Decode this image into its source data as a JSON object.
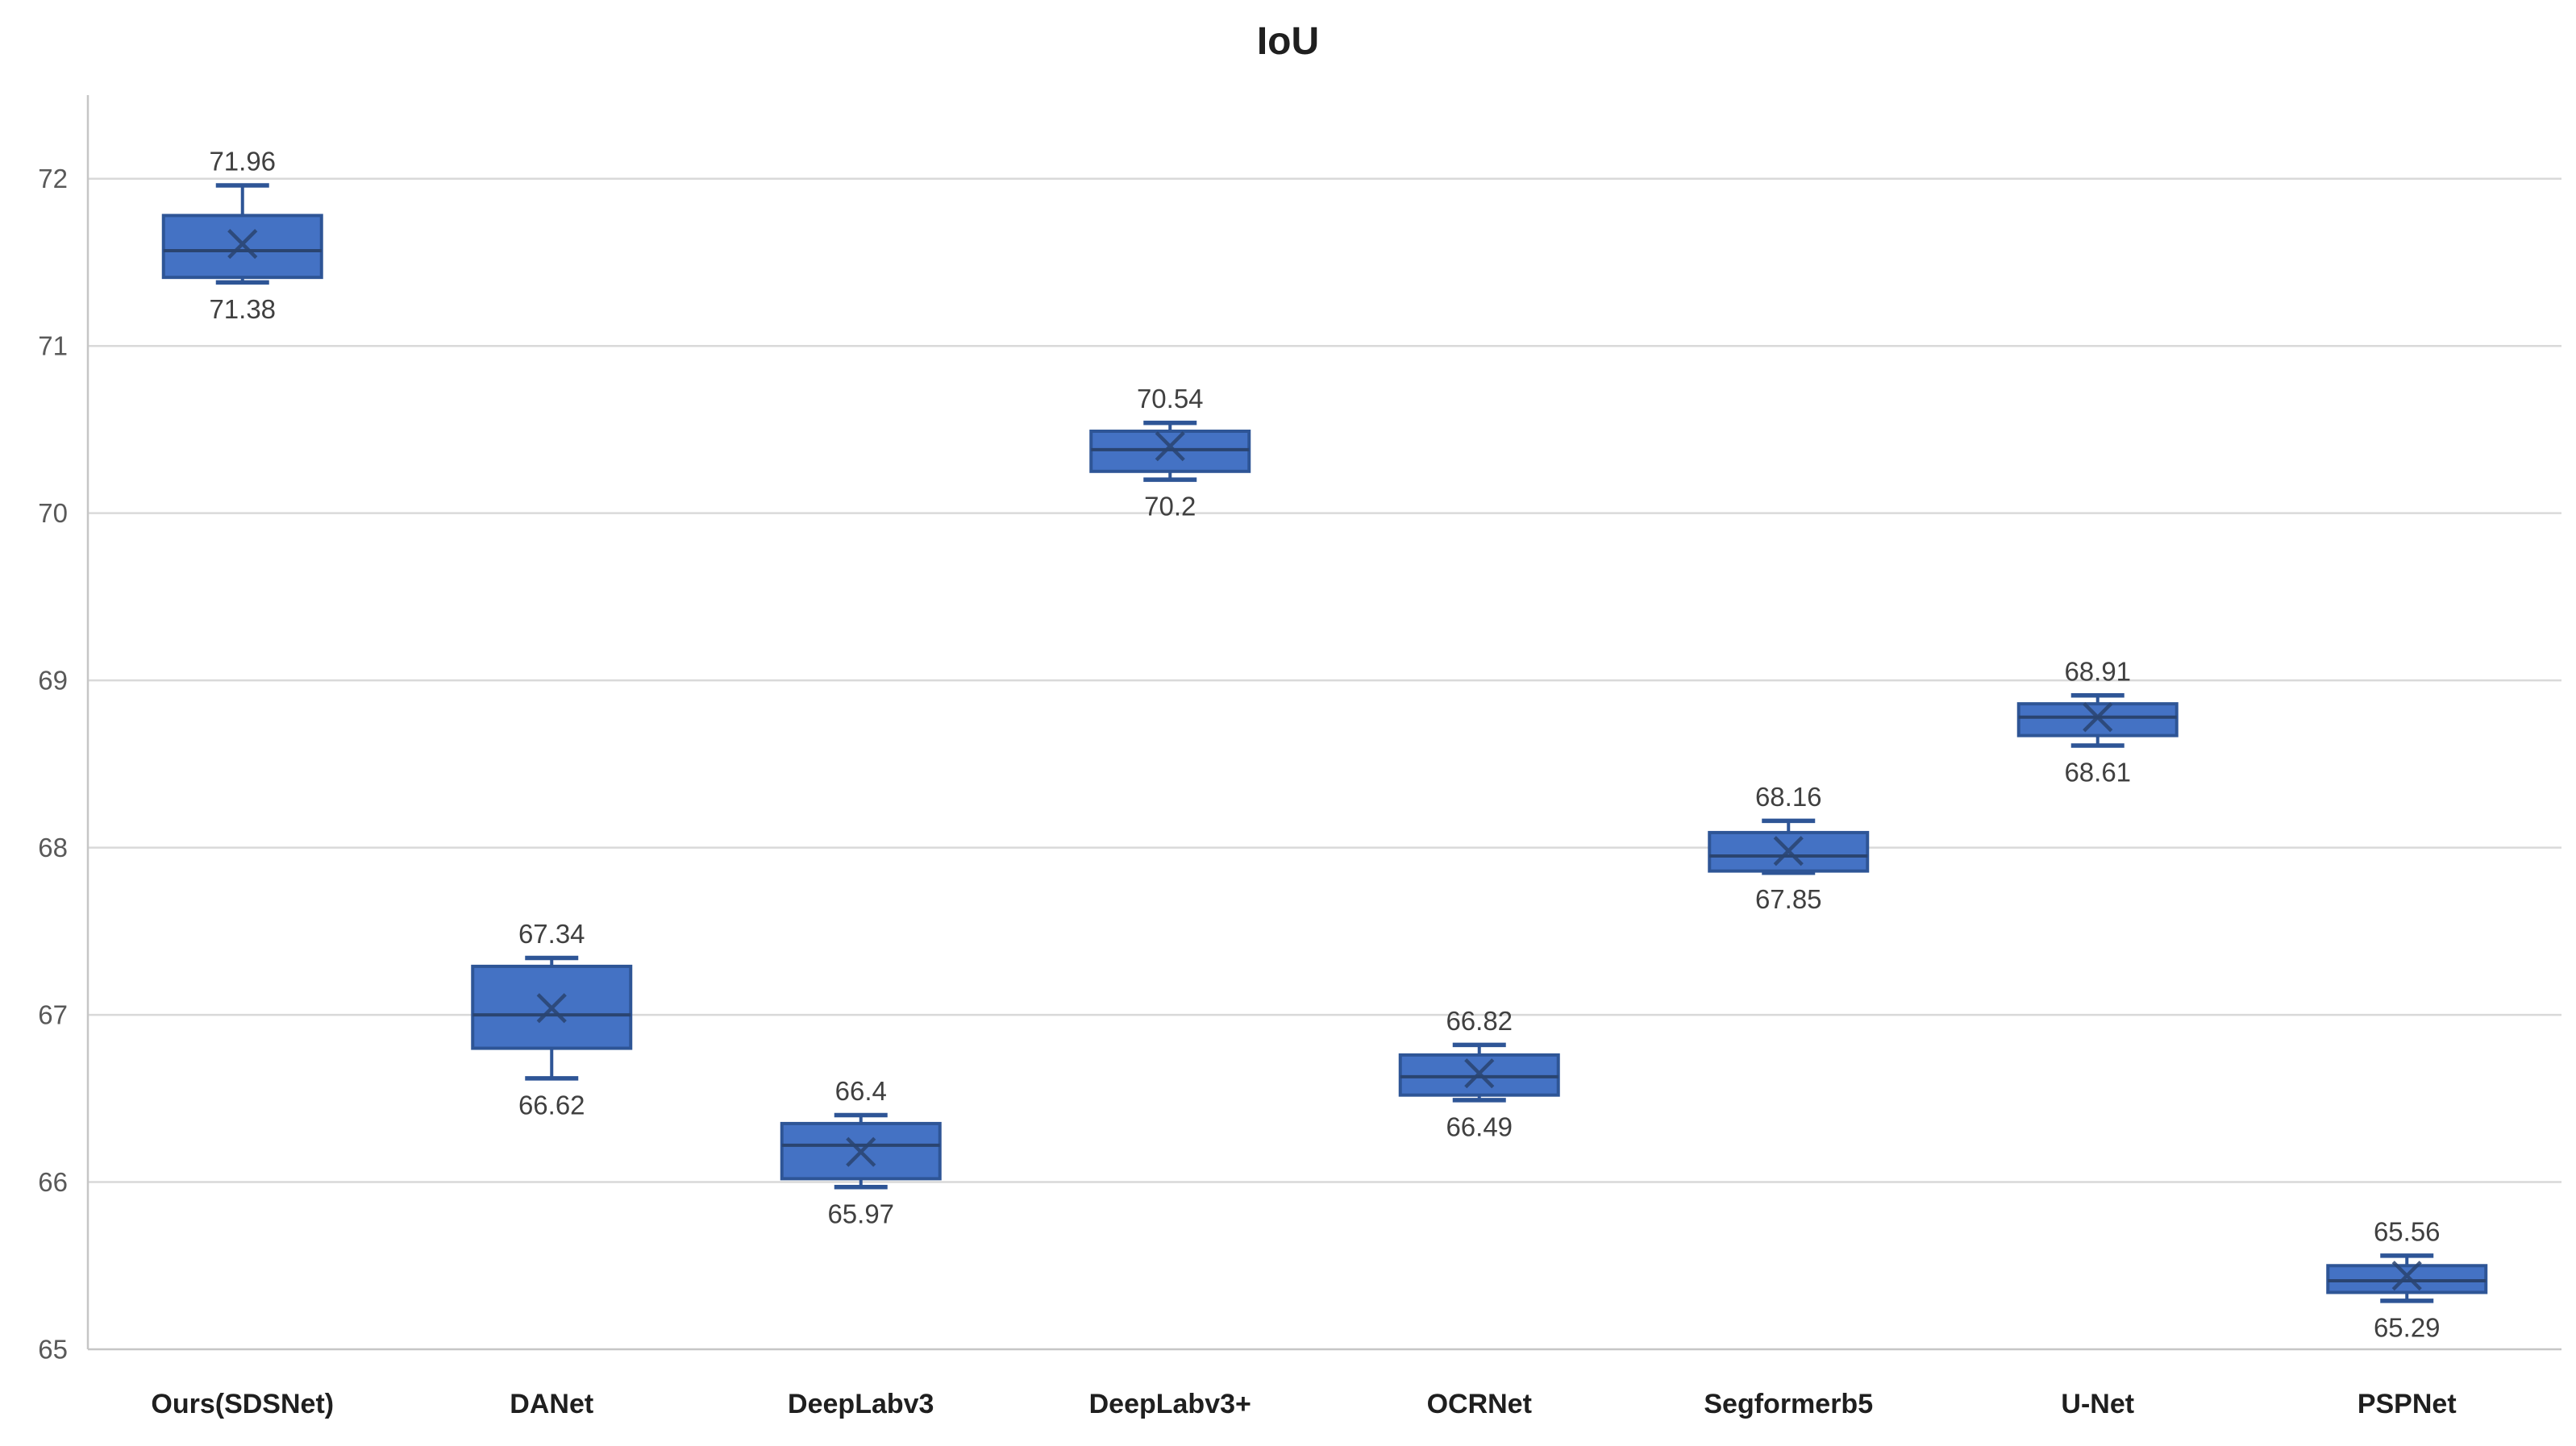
{
  "chart_data": {
    "type": "box",
    "title": "IoU",
    "xlabel": "",
    "ylabel": "",
    "ylim": [
      65,
      72.5
    ],
    "yticks": [
      65,
      66,
      67,
      68,
      69,
      70,
      71,
      72
    ],
    "grid": true,
    "legend_position": "none",
    "categories": [
      "Ours(SDSNet)",
      "DANet",
      "DeepLabv3",
      "DeepLabv3+",
      "OCRNet",
      "Segformerb5",
      "U-Net",
      "PSPNet"
    ],
    "series": [
      {
        "name": "Ours(SDSNet)",
        "min": 71.38,
        "q1": 71.41,
        "median": 71.57,
        "mean": 71.61,
        "q3": 71.78,
        "max": 71.96,
        "max_label": "71.96",
        "min_label": "71.38"
      },
      {
        "name": "DANet",
        "min": 66.62,
        "q1": 66.8,
        "median": 67.0,
        "mean": 67.04,
        "q3": 67.29,
        "max": 67.34,
        "max_label": "67.34",
        "min_label": "66.62"
      },
      {
        "name": "DeepLabv3",
        "min": 65.97,
        "q1": 66.02,
        "median": 66.22,
        "mean": 66.18,
        "q3": 66.35,
        "max": 66.4,
        "max_label": "66.4",
        "min_label": "65.97"
      },
      {
        "name": "DeepLabv3+",
        "min": 70.2,
        "q1": 70.25,
        "median": 70.38,
        "mean": 70.4,
        "q3": 70.49,
        "max": 70.54,
        "max_label": "70.54",
        "min_label": "70.2"
      },
      {
        "name": "OCRNet",
        "min": 66.49,
        "q1": 66.52,
        "median": 66.63,
        "mean": 66.65,
        "q3": 66.76,
        "max": 66.82,
        "max_label": "66.82",
        "min_label": "66.49"
      },
      {
        "name": "Segformerb5",
        "min": 67.85,
        "q1": 67.86,
        "median": 67.95,
        "mean": 67.98,
        "q3": 68.09,
        "max": 68.16,
        "max_label": "68.16",
        "min_label": "67.85"
      },
      {
        "name": "U-Net",
        "min": 68.61,
        "q1": 68.67,
        "median": 68.78,
        "mean": 68.78,
        "q3": 68.86,
        "max": 68.91,
        "max_label": "68.91",
        "min_label": "68.61"
      },
      {
        "name": "PSPNet",
        "min": 65.29,
        "q1": 65.34,
        "median": 65.41,
        "mean": 65.44,
        "q3": 65.5,
        "max": 65.56,
        "max_label": "65.56",
        "min_label": "65.29"
      }
    ],
    "colors": {
      "box_fill": "#4472C4",
      "box_border": "#2E5596",
      "whisker": "#2E5596",
      "median_line": "#2A4470",
      "mean_marker": "#2A4470",
      "gridline": "#D9D9D9",
      "axis_line": "#C6C6C6",
      "tick_text": "#595959",
      "value_label_text": "#404040",
      "category_text": "#1f1f1f",
      "title_text": "#1f1f1f",
      "background": "#ffffff"
    }
  }
}
